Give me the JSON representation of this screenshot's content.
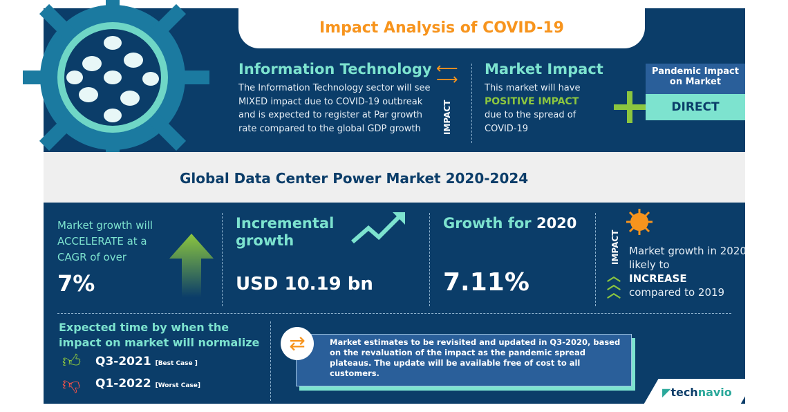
{
  "title": "Impact Analysis of COVID-19",
  "sector": {
    "heading": "Information Technology",
    "text": "The Information Technology sector will see MIXED  impact due to COVID-19 outbreak and is expected to register at Par growth rate compared to the global GDP growth"
  },
  "impact_label": "IMPACT",
  "market_impact": {
    "heading": "Market Impact",
    "line1": "This market will have",
    "highlight": "POSITIVE IMPACT",
    "line2": "due to the spread of COVID-19"
  },
  "pandemic": {
    "heading": "Pandemic Impact on Market",
    "value": "DIRECT"
  },
  "market_title": "Global Data Center Power Market 2020-2024",
  "cagr": {
    "text": "Market growth will ACCELERATE at a CAGR of over",
    "value": "7%"
  },
  "incremental": {
    "heading": "Incremental growth",
    "value": "USD 10.19 bn"
  },
  "growth": {
    "heading_prefix": "Growth for ",
    "heading_year": "2020",
    "value": "7.11%"
  },
  "impact2": {
    "label": "IMPACT",
    "line1": "Market growth in 2020 likely to",
    "highlight": "INCREASE",
    "line2": "compared to 2019"
  },
  "normalize": {
    "heading": "Expected time by when the impact on market will normalize",
    "best": "Q3-2021",
    "best_note": "[Best Case ]",
    "worst": "Q1-2022",
    "worst_note": "[Worst Case]"
  },
  "note": "Market estimates to be revisited and updated in Q3-2020, based on the revaluation of the impact as the pandemic spread plateaus. The update will be available free of cost to all customers.",
  "brand": {
    "prefix": "tech",
    "suffix": "navio"
  },
  "colors": {
    "navy": "#0b3d69",
    "teal": "#7de3cf",
    "green": "#8cc63f",
    "orange": "#f7941d"
  }
}
